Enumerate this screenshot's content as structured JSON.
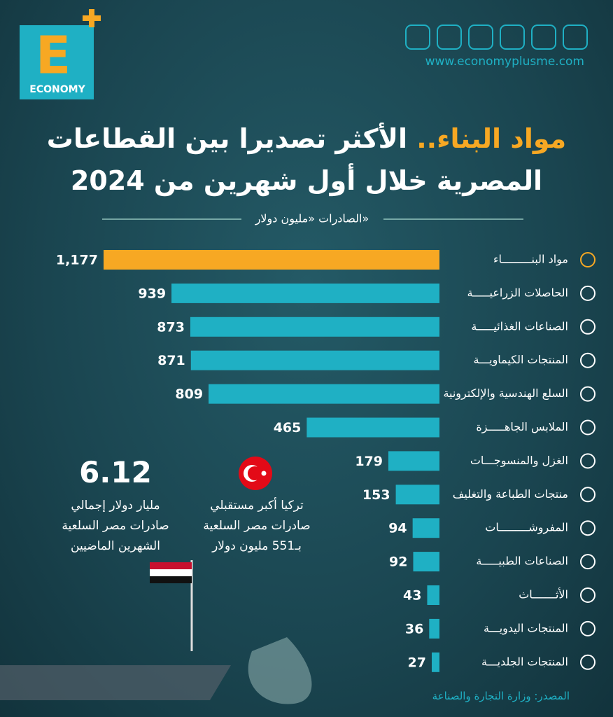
{
  "header": {
    "logo_letter": "E",
    "logo_word": "ECONOMY",
    "website": "www.economyplusme.com"
  },
  "chart_data": {
    "type": "bar",
    "orientation": "horizontal",
    "title_highlight": "مواد البناء..",
    "title_rest": "الأكثر تصديرا بين القطاعات",
    "title_line2": "المصرية خلال أول شهرين من 2024",
    "subtitle": "الصادرات «مليون دولار»",
    "categories": [
      "مواد البنـــــــــاء",
      "الحاصلات الزراعيـــــة",
      "الصناعات الغذائيـــــة",
      "المنتجات الكيماويـــة",
      "السلع الهندسية والإلكترونية",
      "الملابس الجاهـــــزة",
      "الغزل والمنسوجـــات",
      "منتجات الطباعة والتغليف",
      "المفروشـــــــــات",
      "الصناعات الطبيـــــة",
      "الأثـــــــاث",
      "المنتجات اليدويـــة",
      "المنتجات الجلديـــة"
    ],
    "values": [
      1177,
      939,
      873,
      871,
      809,
      465,
      179,
      153,
      94,
      92,
      43,
      36,
      27
    ],
    "value_labels": [
      "1,177",
      "939",
      "873",
      "871",
      "809",
      "465",
      "179",
      "153",
      "94",
      "92",
      "43",
      "36",
      "27"
    ],
    "colors": [
      "#f7a823",
      "#1fb0c4",
      "#1fb0c4",
      "#1fb0c4",
      "#1fb0c4",
      "#1fb0c4",
      "#1fb0c4",
      "#1fb0c4",
      "#1fb0c4",
      "#1fb0c4",
      "#1fb0c4",
      "#1fb0c4",
      "#1fb0c4"
    ]
  },
  "annotations": {
    "total_value": "6.12",
    "total_lines": [
      "مليار دولار إجمالي",
      "صادرات مصر السلعية",
      "الشهرين الماضيين"
    ],
    "turkey_lines": [
      "تركيا أكبر مستقبلي",
      "صادرات مصر السلعية",
      "بـ551 مليون دولار"
    ]
  },
  "source": "المصدر: وزارة التجارة والصناعة"
}
